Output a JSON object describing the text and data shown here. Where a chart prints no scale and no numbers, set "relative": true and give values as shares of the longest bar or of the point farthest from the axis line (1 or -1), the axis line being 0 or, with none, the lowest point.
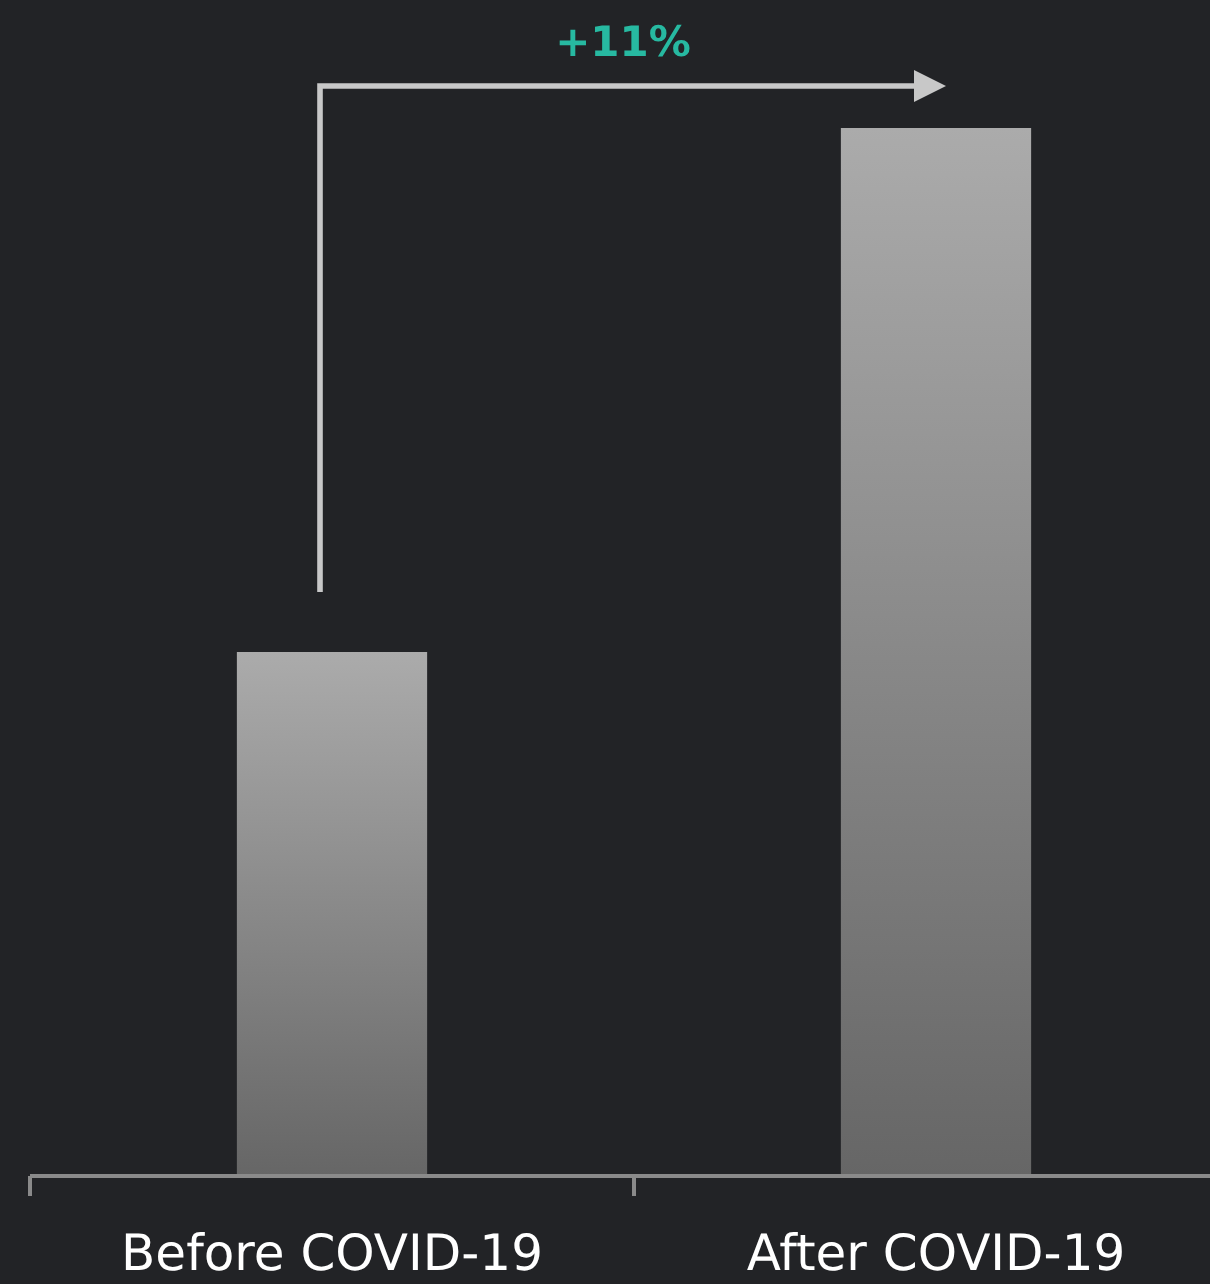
{
  "chart_data": {
    "type": "bar",
    "categories": [
      "Before COVID-19",
      "After COVID-19"
    ],
    "values": [
      0.5,
      1
    ],
    "relative": true,
    "color": "#8a8a8a",
    "annotations": [
      "+11%"
    ]
  }
}
